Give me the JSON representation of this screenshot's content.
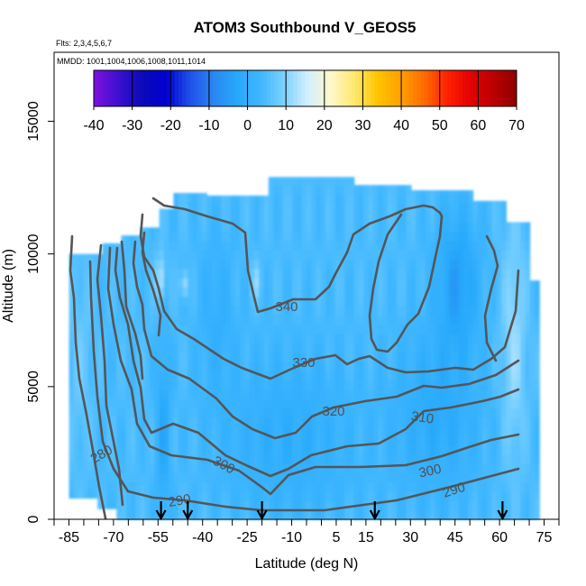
{
  "chart_data": {
    "type": "heatmap",
    "title": "ATOM3 Southbound V_GEOS5",
    "flights_note": "Flts: 2,3,4,5,6,7",
    "dates_note": "MMDD: 1001,1004,1006,1008,1011,1014",
    "xlabel": "Latitude (deg N)",
    "ylabel": "Altitude (m)",
    "xlim": [
      -90,
      80
    ],
    "ylim": [
      0,
      17600
    ],
    "x_tick_labels": [
      "-85",
      "-70",
      "-55",
      "-40",
      "-25",
      "-10",
      "5",
      "15",
      "30",
      "45",
      "60",
      "75"
    ],
    "y_tick_labels": [
      "0",
      "5000",
      "10000",
      "15000"
    ],
    "colorbar": {
      "min": -40,
      "max": 70,
      "tick_labels": [
        "-40",
        "-30",
        "-20",
        "-10",
        "0",
        "10",
        "20",
        "30",
        "40",
        "50",
        "60",
        "70"
      ],
      "colors": [
        "#7a10e0",
        "#3a10d0",
        "#0a0ab8",
        "#0000d0",
        "#1f50e8",
        "#2a86f2",
        "#27a8fb",
        "#3eb6ff",
        "#7ad0ff",
        "#d0eeff",
        "#fff8cc",
        "#ffe870",
        "#ffc400",
        "#ffa000",
        "#ff6a00",
        "#ff2000",
        "#e00000",
        "#b80000",
        "#880000"
      ]
    },
    "profile_markers_lat": [
      -54,
      -45,
      -20,
      18,
      61
    ],
    "contours": [
      {
        "label": "280",
        "label_lat": -78,
        "label_alt": 2400
      },
      {
        "label": "290",
        "label_lat": -47,
        "label_alt": 800,
        "second_label": "290",
        "second_lat": 50,
        "second_alt": 1200
      },
      {
        "label": "300",
        "label_lat": -33,
        "label_alt": 1900,
        "second_label": "300",
        "second_lat": 40,
        "second_alt": 1800
      },
      {
        "label": "310",
        "label_lat": 35,
        "label_alt": 3800
      },
      {
        "label": "320",
        "label_lat": 11,
        "label_alt": 4200
      },
      {
        "label": "330",
        "label_lat": -5,
        "label_alt": 6100
      },
      {
        "label": "340",
        "label_lat": -12,
        "label_alt": 8300
      }
    ]
  }
}
